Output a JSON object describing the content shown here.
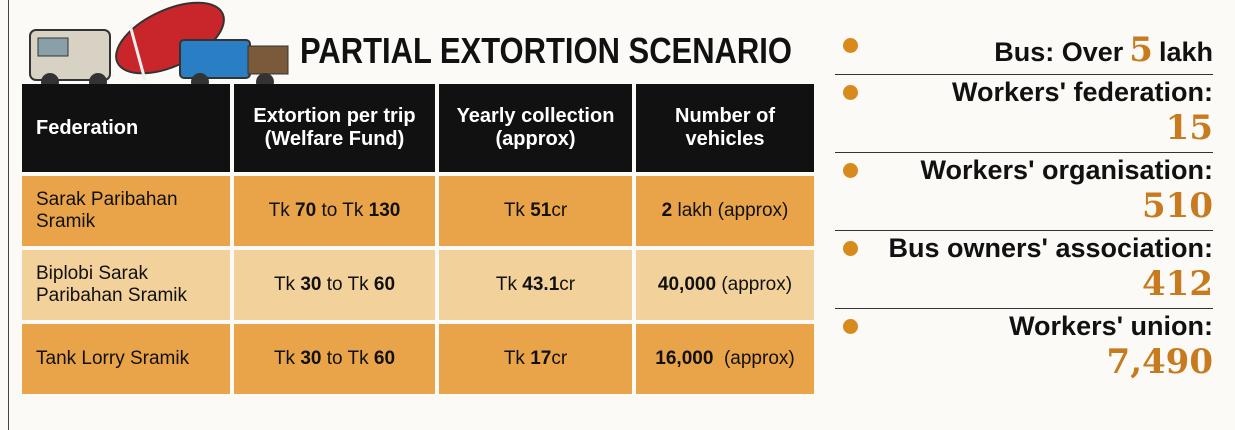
{
  "title": "PARTIAL EXTORTION SCENARIO",
  "table": {
    "header": [
      "Federation",
      "Extortion per trip (Welfare Fund)",
      "Yearly collection (approx)",
      "Number of vehicles"
    ],
    "rows": [
      {
        "cells": [
          [
            {
              "text": "Sarak Paribahan Sramik"
            }
          ],
          [
            {
              "text": "Tk "
            },
            {
              "text": "70",
              "bold": true
            },
            {
              "text": " to Tk "
            },
            {
              "text": "130",
              "bold": true
            }
          ],
          [
            {
              "text": "Tk "
            },
            {
              "text": "51",
              "bold": true
            },
            {
              "text": "cr"
            }
          ],
          [
            {
              "text": "2",
              "bold": true
            },
            {
              "text": " lakh (approx)"
            }
          ]
        ]
      },
      {
        "cells": [
          [
            {
              "text": "Biplobi Sarak Paribahan Sramik"
            }
          ],
          [
            {
              "text": "Tk "
            },
            {
              "text": "30",
              "bold": true
            },
            {
              "text": " to Tk "
            },
            {
              "text": "60",
              "bold": true
            }
          ],
          [
            {
              "text": "Tk "
            },
            {
              "text": "43.1",
              "bold": true
            },
            {
              "text": "cr"
            }
          ],
          [
            {
              "text": "40,000",
              "bold": true
            },
            {
              "text": " (approx)"
            }
          ]
        ]
      },
      {
        "cells": [
          [
            {
              "text": "Tank Lorry Sramik"
            }
          ],
          [
            {
              "text": "Tk "
            },
            {
              "text": "30",
              "bold": true
            },
            {
              "text": " to Tk "
            },
            {
              "text": "60",
              "bold": true
            }
          ],
          [
            {
              "text": "Tk "
            },
            {
              "text": "17",
              "bold": true
            },
            {
              "text": "cr"
            }
          ],
          [
            {
              "text": "16,000",
              "bold": true
            },
            {
              "text": "  (approx)"
            }
          ]
        ]
      }
    ]
  },
  "summary": [
    {
      "label": "Bus: Over",
      "value": "5",
      "suffix": "lakh"
    },
    {
      "label": "Workers' federation:",
      "value": "15"
    },
    {
      "label": "Workers' organisation:",
      "value": "510"
    },
    {
      "label": "Bus owners' association:",
      "value": "412"
    },
    {
      "label": "Workers' union:",
      "value": "7,490"
    }
  ]
}
